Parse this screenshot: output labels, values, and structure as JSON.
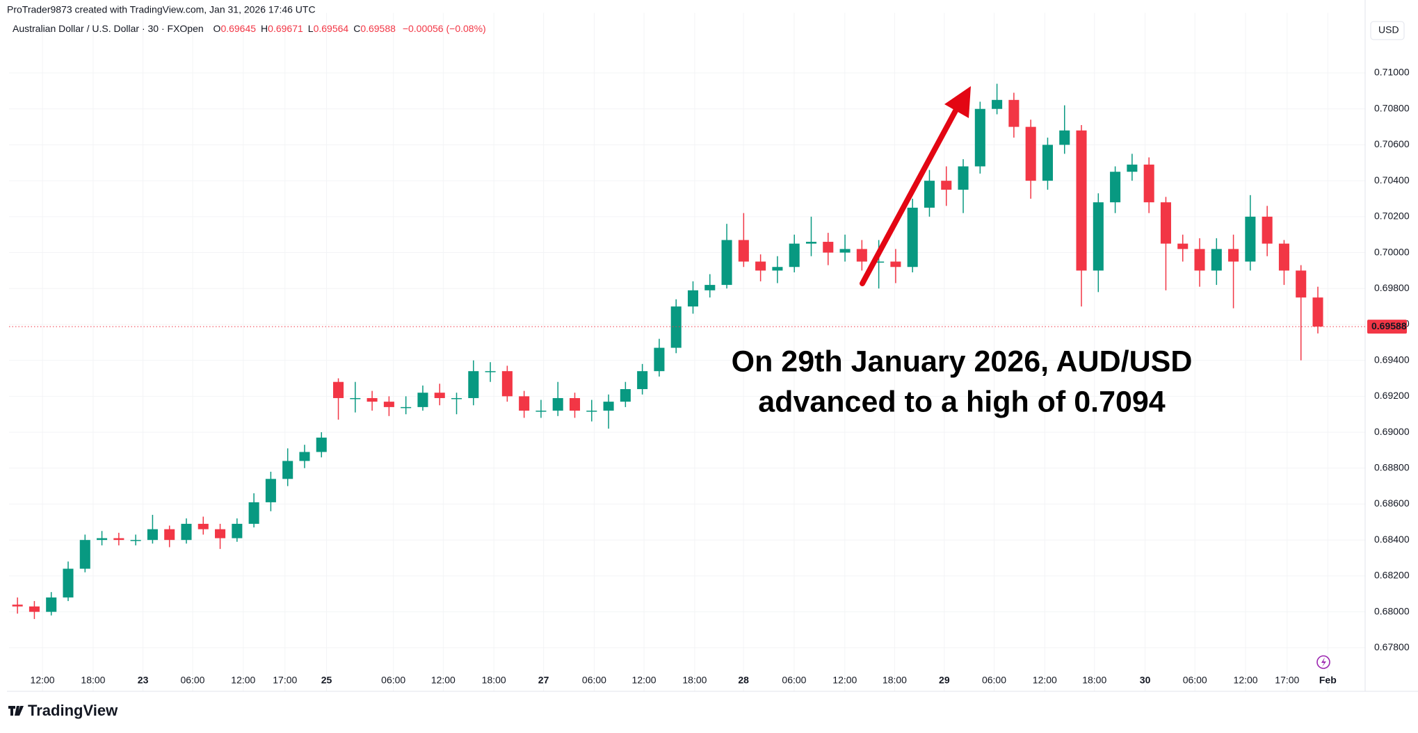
{
  "chart_data": {
    "type": "candlestick",
    "credit": "ProTrader9873 created with TradingView.com, Jan 31, 2026 17:46 UTC",
    "title": "Australian Dollar / U.S. Dollar · 30 · FXOpen",
    "ohlc": [
      {
        "label": "O",
        "value": 0.69645
      },
      {
        "label": "H",
        "value": 0.69671
      },
      {
        "label": "L",
        "value": 0.69564
      },
      {
        "label": "C",
        "value": 0.69588
      }
    ],
    "change": "−0.00056 (−0.08%)",
    "currency": "USD",
    "annotation": [
      "On 29th January 2026, AUD/USD",
      "advanced to a high of 0.7094"
    ],
    "brand": "TradingView",
    "up_color": "#089981",
    "down_color": "#f23645",
    "grid": true,
    "ylim": [
      0.6766,
      0.7118
    ],
    "yticks": [
      {
        "value": 0.678,
        "label": "0.67800"
      },
      {
        "value": 0.68,
        "label": "0.68000"
      },
      {
        "value": 0.682,
        "label": "0.68200"
      },
      {
        "value": 0.684,
        "label": "0.68400"
      },
      {
        "value": 0.686,
        "label": "0.68600"
      },
      {
        "value": 0.688,
        "label": "0.68800"
      },
      {
        "value": 0.69,
        "label": "0.69000"
      },
      {
        "value": 0.692,
        "label": "0.69200"
      },
      {
        "value": 0.694,
        "label": "0.69400"
      },
      {
        "value": 0.696,
        "label": "0.69600"
      },
      {
        "value": 0.698,
        "label": "0.69800"
      },
      {
        "value": 0.7,
        "label": "0.70000"
      },
      {
        "value": 0.702,
        "label": "0.70200"
      },
      {
        "value": 0.704,
        "label": "0.70400"
      },
      {
        "value": 0.706,
        "label": "0.70600"
      },
      {
        "value": 0.708,
        "label": "0.70800"
      },
      {
        "value": 0.71,
        "label": "0.71000"
      }
    ],
    "xlim": [
      0,
      80.3
    ],
    "xticks": [
      {
        "value": 1.98,
        "label": "12:00"
      },
      {
        "value": 4.98,
        "label": "18:00"
      },
      {
        "value": 7.93,
        "label": "23"
      },
      {
        "value": 10.87,
        "label": "06:00"
      },
      {
        "value": 13.87,
        "label": "12:00"
      },
      {
        "value": 16.34,
        "label": "17:00"
      },
      {
        "value": 18.8,
        "label": "25"
      },
      {
        "value": 22.76,
        "label": "06:00"
      },
      {
        "value": 25.71,
        "label": "12:00"
      },
      {
        "value": 28.71,
        "label": "18:00"
      },
      {
        "value": 31.65,
        "label": "27"
      },
      {
        "value": 34.65,
        "label": "06:00"
      },
      {
        "value": 37.6,
        "label": "12:00"
      },
      {
        "value": 40.6,
        "label": "18:00"
      },
      {
        "value": 43.49,
        "label": "28"
      },
      {
        "value": 46.49,
        "label": "06:00"
      },
      {
        "value": 49.49,
        "label": "12:00"
      },
      {
        "value": 52.44,
        "label": "18:00"
      },
      {
        "value": 55.38,
        "label": "29"
      },
      {
        "value": 58.33,
        "label": "06:00"
      },
      {
        "value": 61.33,
        "label": "12:00"
      },
      {
        "value": 64.27,
        "label": "18:00"
      },
      {
        "value": 67.27,
        "label": "30"
      },
      {
        "value": 70.22,
        "label": "06:00"
      },
      {
        "value": 73.22,
        "label": "12:00"
      },
      {
        "value": 75.68,
        "label": "17:00"
      },
      {
        "value": 78.09,
        "label": "Feb"
      }
    ],
    "candles": [
      [
        0.6804,
        0.6808,
        0.6799,
        0.6803
      ],
      [
        0.6803,
        0.6806,
        0.6796,
        0.68
      ],
      [
        0.68,
        0.6811,
        0.6798,
        0.6808
      ],
      [
        0.6808,
        0.6828,
        0.6806,
        0.6824
      ],
      [
        0.6824,
        0.6843,
        0.6822,
        0.684
      ],
      [
        0.684,
        0.6845,
        0.6837,
        0.6841
      ],
      [
        0.6841,
        0.6844,
        0.6837,
        0.684
      ],
      [
        0.684,
        0.6843,
        0.6837,
        0.684
      ],
      [
        0.684,
        0.6854,
        0.6838,
        0.6846
      ],
      [
        0.6846,
        0.6848,
        0.6836,
        0.684
      ],
      [
        0.684,
        0.6852,
        0.6838,
        0.6849
      ],
      [
        0.6849,
        0.6853,
        0.6843,
        0.6846
      ],
      [
        0.6846,
        0.6849,
        0.6835,
        0.6841
      ],
      [
        0.6841,
        0.6852,
        0.6839,
        0.6849
      ],
      [
        0.6849,
        0.6866,
        0.6847,
        0.6861
      ],
      [
        0.6861,
        0.6878,
        0.6856,
        0.6874
      ],
      [
        0.6874,
        0.6891,
        0.687,
        0.6884
      ],
      [
        0.6884,
        0.6893,
        0.688,
        0.6889
      ],
      [
        0.6889,
        0.69,
        0.6886,
        0.6897
      ],
      [
        0.6928,
        0.693,
        0.6907,
        0.6919
      ],
      [
        0.6919,
        0.6928,
        0.6911,
        0.6919
      ],
      [
        0.6919,
        0.6923,
        0.6912,
        0.6917
      ],
      [
        0.6917,
        0.692,
        0.6909,
        0.6914
      ],
      [
        0.6914,
        0.692,
        0.691,
        0.6914
      ],
      [
        0.6914,
        0.6926,
        0.6912,
        0.6922
      ],
      [
        0.6922,
        0.6927,
        0.6915,
        0.6919
      ],
      [
        0.6919,
        0.6922,
        0.691,
        0.6919
      ],
      [
        0.6919,
        0.694,
        0.6915,
        0.6934
      ],
      [
        0.6934,
        0.6939,
        0.6928,
        0.6934
      ],
      [
        0.6934,
        0.6937,
        0.6917,
        0.692
      ],
      [
        0.692,
        0.6923,
        0.6908,
        0.6912
      ],
      [
        0.6912,
        0.6918,
        0.6908,
        0.6912
      ],
      [
        0.6912,
        0.6928,
        0.6909,
        0.6919
      ],
      [
        0.6919,
        0.6922,
        0.6908,
        0.6912
      ],
      [
        0.6912,
        0.6918,
        0.6906,
        0.6912
      ],
      [
        0.6912,
        0.6921,
        0.6902,
        0.6917
      ],
      [
        0.6917,
        0.6928,
        0.6914,
        0.6924
      ],
      [
        0.6924,
        0.6938,
        0.6921,
        0.6934
      ],
      [
        0.6934,
        0.6952,
        0.6931,
        0.6947
      ],
      [
        0.6947,
        0.6974,
        0.6944,
        0.697
      ],
      [
        0.697,
        0.6984,
        0.6966,
        0.6979
      ],
      [
        0.6979,
        0.6988,
        0.6975,
        0.6982
      ],
      [
        0.6982,
        0.7016,
        0.698,
        0.7007
      ],
      [
        0.7007,
        0.7022,
        0.6992,
        0.6995
      ],
      [
        0.6995,
        0.6999,
        0.6984,
        0.699
      ],
      [
        0.699,
        0.6998,
        0.6983,
        0.6992
      ],
      [
        0.6992,
        0.701,
        0.6989,
        0.7005
      ],
      [
        0.7005,
        0.702,
        0.6998,
        0.7006
      ],
      [
        0.7006,
        0.7011,
        0.6993,
        0.7
      ],
      [
        0.7,
        0.701,
        0.6995,
        0.7002
      ],
      [
        0.7002,
        0.7007,
        0.699,
        0.6995
      ],
      [
        0.6995,
        0.7007,
        0.698,
        0.6995
      ],
      [
        0.6995,
        0.7002,
        0.6983,
        0.6992
      ],
      [
        0.6992,
        0.703,
        0.6989,
        0.7025
      ],
      [
        0.7025,
        0.7046,
        0.702,
        0.704
      ],
      [
        0.704,
        0.7048,
        0.7026,
        0.7035
      ],
      [
        0.7035,
        0.7052,
        0.7022,
        0.7048
      ],
      [
        0.7048,
        0.7084,
        0.7044,
        0.708
      ],
      [
        0.708,
        0.7094,
        0.7077,
        0.7085
      ],
      [
        0.7085,
        0.7089,
        0.7064,
        0.707
      ],
      [
        0.707,
        0.7074,
        0.703,
        0.704
      ],
      [
        0.704,
        0.7064,
        0.7035,
        0.706
      ],
      [
        0.706,
        0.7082,
        0.7055,
        0.7068
      ],
      [
        0.7068,
        0.7071,
        0.697,
        0.699
      ],
      [
        0.699,
        0.7033,
        0.6978,
        0.7028
      ],
      [
        0.7028,
        0.7048,
        0.7022,
        0.7045
      ],
      [
        0.7045,
        0.7055,
        0.704,
        0.7049
      ],
      [
        0.7049,
        0.7053,
        0.7022,
        0.7028
      ],
      [
        0.7028,
        0.7031,
        0.6979,
        0.7005
      ],
      [
        0.7005,
        0.701,
        0.6995,
        0.7002
      ],
      [
        0.7002,
        0.7008,
        0.6981,
        0.699
      ],
      [
        0.699,
        0.7008,
        0.6982,
        0.7002
      ],
      [
        0.7002,
        0.701,
        0.6969,
        0.6995
      ],
      [
        0.6995,
        0.7032,
        0.699,
        0.702
      ],
      [
        0.702,
        0.7026,
        0.6998,
        0.7005
      ],
      [
        0.7005,
        0.7007,
        0.6982,
        0.699
      ],
      [
        0.699,
        0.6993,
        0.694,
        0.6975
      ],
      [
        0.6975,
        0.6981,
        0.6955,
        0.69588
      ]
    ]
  }
}
